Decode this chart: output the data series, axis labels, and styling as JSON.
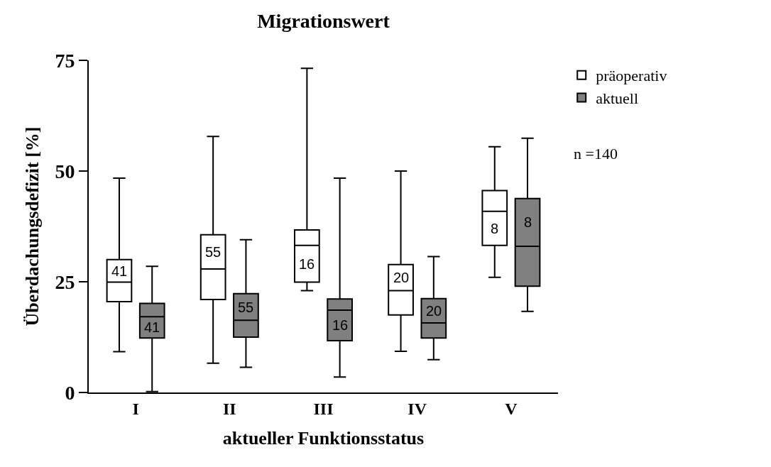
{
  "chart_data": {
    "type": "box",
    "title": "Migrationswert",
    "xlabel": "aktueller Funktionsstatus",
    "ylabel": "Überdachungsdefizit [%]",
    "categories": [
      "I",
      "II",
      "III",
      "IV",
      "V"
    ],
    "series": [
      {
        "name": "präoperativ",
        "color": "#ffffff",
        "value_labels": [
          "41",
          "55",
          "16",
          "20",
          "8"
        ],
        "boxes": [
          {
            "low": 9.2,
            "q1": 20.5,
            "median": 24.9,
            "q3": 30.0,
            "high": 48.4
          },
          {
            "low": 6.6,
            "q1": 21.0,
            "median": 27.9,
            "q3": 35.6,
            "high": 57.8
          },
          {
            "low": 23.0,
            "q1": 24.9,
            "median": 33.2,
            "q3": 36.7,
            "high": 73.2
          },
          {
            "low": 9.3,
            "q1": 17.5,
            "median": 23.0,
            "q3": 28.9,
            "high": 50.0
          },
          {
            "low": 26.0,
            "q1": 33.2,
            "median": 40.9,
            "q3": 45.6,
            "high": 55.5
          }
        ]
      },
      {
        "name": "aktuell",
        "color": "#808080",
        "value_labels": [
          "41",
          "55",
          "16",
          "20",
          "8"
        ],
        "boxes": [
          {
            "low": 0.2,
            "q1": 12.3,
            "median": 17.1,
            "q3": 20.1,
            "high": 28.5
          },
          {
            "low": 5.7,
            "q1": 12.5,
            "median": 16.3,
            "q3": 22.3,
            "high": 34.5
          },
          {
            "low": 3.5,
            "q1": 11.7,
            "median": 18.6,
            "q3": 21.1,
            "high": 48.4
          },
          {
            "low": 7.4,
            "q1": 12.3,
            "median": 15.7,
            "q3": 21.2,
            "high": 30.7
          },
          {
            "low": 18.3,
            "q1": 24.0,
            "median": 33.0,
            "q3": 43.8,
            "high": 57.4
          }
        ]
      }
    ],
    "ylim": [
      0,
      75
    ],
    "yticks": [
      0,
      25,
      50,
      75
    ],
    "grid": false,
    "legend": "top right",
    "annotations": [
      "n =140"
    ]
  }
}
